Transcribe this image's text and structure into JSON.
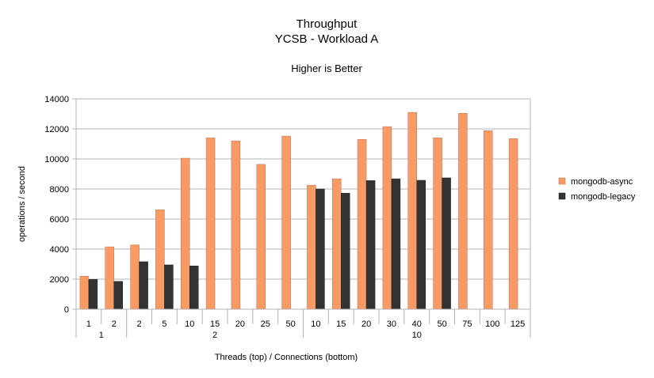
{
  "chart_data": {
    "type": "bar",
    "title": "Throughput",
    "subtitle": "YCSB - Workload A",
    "note": "Higher is Better",
    "xlabel": "Threads (top) / Connections (bottom)",
    "ylabel": "operations / second",
    "ylim": [
      0,
      14000
    ],
    "yticks": [
      0,
      2000,
      4000,
      6000,
      8000,
      10000,
      12000,
      14000
    ],
    "grid": true,
    "legend_position": "right",
    "categories": [
      "1",
      "2",
      "2",
      "5",
      "10",
      "15",
      "20",
      "25",
      "50",
      "10",
      "15",
      "20",
      "30",
      "40",
      "50",
      "75",
      "100",
      "125"
    ],
    "groups": [
      {
        "label": "1",
        "count": 2
      },
      {
        "label": "2",
        "count": 7
      },
      {
        "label": "10",
        "count": 9
      }
    ],
    "series": [
      {
        "name": "mongodb-async",
        "color": "#f79a64",
        "values": [
          2200,
          4150,
          4280,
          6620,
          10050,
          11400,
          11200,
          9640,
          11520,
          8250,
          8680,
          11300,
          12150,
          13100,
          11400,
          13040,
          11880,
          11350
        ]
      },
      {
        "name": "mongodb-legacy",
        "color": "#333333",
        "values": [
          1980,
          1850,
          3160,
          2950,
          2880,
          null,
          null,
          null,
          null,
          8000,
          7720,
          8560,
          8680,
          8580,
          8740,
          null,
          null,
          null
        ]
      }
    ]
  }
}
